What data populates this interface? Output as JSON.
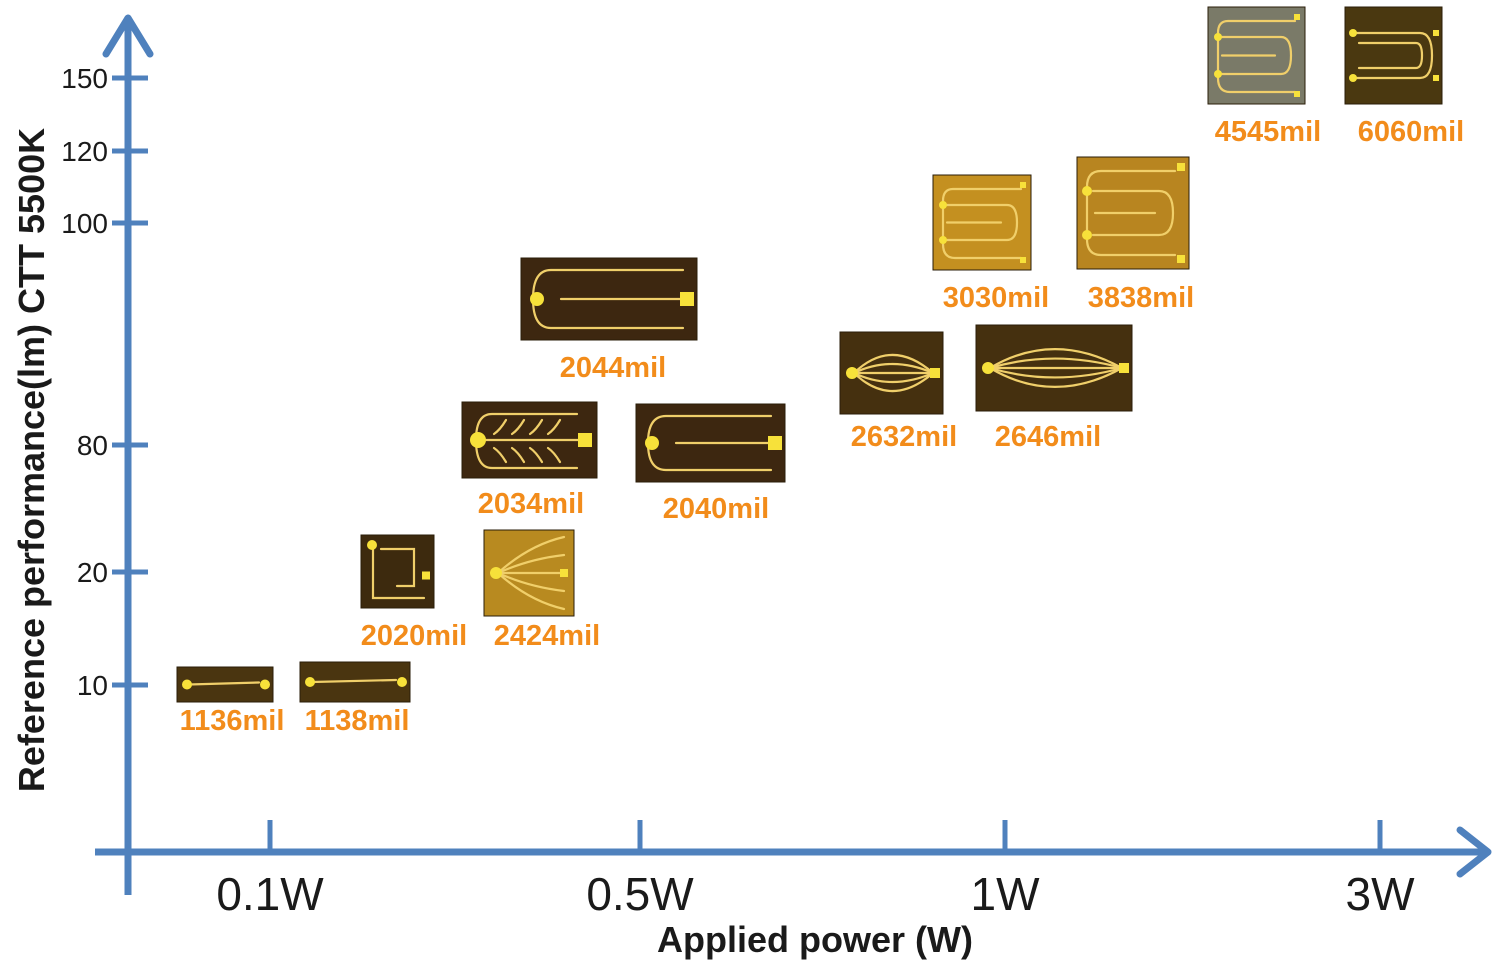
{
  "chart_data": {
    "type": "scatter",
    "title": "",
    "xlabel": "Applied power (W)",
    "ylabel": "Reference performance(lm) CTT 5500K",
    "x_categories": [
      "0.1W",
      "0.5W",
      "1W",
      "3W"
    ],
    "y_ticks": [
      10,
      20,
      80,
      100,
      120,
      150
    ],
    "grid": false,
    "legend": "none",
    "colors": {
      "axis": "#4f81bd",
      "label": "#f28c1b"
    },
    "points": [
      {
        "label": "1136mil",
        "x": 0.07,
        "y": 10
      },
      {
        "label": "1138mil",
        "x": 0.13,
        "y": 10
      },
      {
        "label": "2020mil",
        "x": 0.2,
        "y": 20
      },
      {
        "label": "2424mil",
        "x": 0.3,
        "y": 20
      },
      {
        "label": "2034mil",
        "x": 0.35,
        "y": 80
      },
      {
        "label": "2040mil",
        "x": 0.6,
        "y": 80
      },
      {
        "label": "2044mil",
        "x": 0.4,
        "y": 90
      },
      {
        "label": "2632mil",
        "x": 0.8,
        "y": 85
      },
      {
        "label": "2646mil",
        "x": 1.1,
        "y": 85
      },
      {
        "label": "3030mil",
        "x": 1.0,
        "y": 100
      },
      {
        "label": "3838mil",
        "x": 1.3,
        "y": 100
      },
      {
        "label": "4545mil",
        "x": 2.0,
        "y": 150
      },
      {
        "label": "6060mil",
        "x": 2.6,
        "y": 150
      }
    ]
  }
}
